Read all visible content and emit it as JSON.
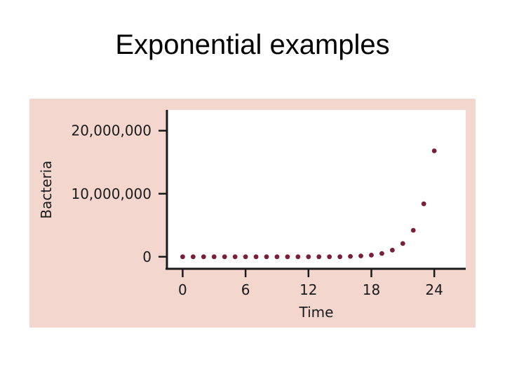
{
  "slide": {
    "title": "Exponential examples"
  },
  "colors": {
    "panel_background": "#f3d7cf",
    "plot_background": "#ffffff",
    "axis": "#1a1a1a",
    "point": "#7a1f3a"
  },
  "chart_data": {
    "type": "scatter",
    "title": "",
    "xlabel": "Time",
    "ylabel": "Bacteria",
    "xlim": [
      -1.5,
      27
    ],
    "ylim": [
      -1800000,
      23300000
    ],
    "x_ticks": [
      0,
      6,
      12,
      18,
      24
    ],
    "x_tick_labels": [
      "0",
      "6",
      "12",
      "18",
      "24"
    ],
    "y_ticks": [
      0,
      10000000,
      20000000
    ],
    "y_tick_labels": [
      "0",
      "10,000,000",
      "20,000,000"
    ],
    "grid": false,
    "legend": "none",
    "series": [
      {
        "x": [
          0,
          1,
          2,
          3,
          4,
          5,
          6,
          7,
          8,
          9,
          10,
          11,
          12,
          13,
          14,
          15,
          16,
          17,
          18,
          19,
          20,
          21,
          22,
          23,
          24
        ],
        "y": [
          0,
          0,
          0,
          0,
          0,
          0,
          0,
          0,
          0,
          0,
          0,
          0,
          0,
          0,
          0,
          0,
          60000,
          130000,
          260000,
          520000,
          1050000,
          2100000,
          4200000,
          8400000,
          16800000
        ]
      }
    ]
  }
}
